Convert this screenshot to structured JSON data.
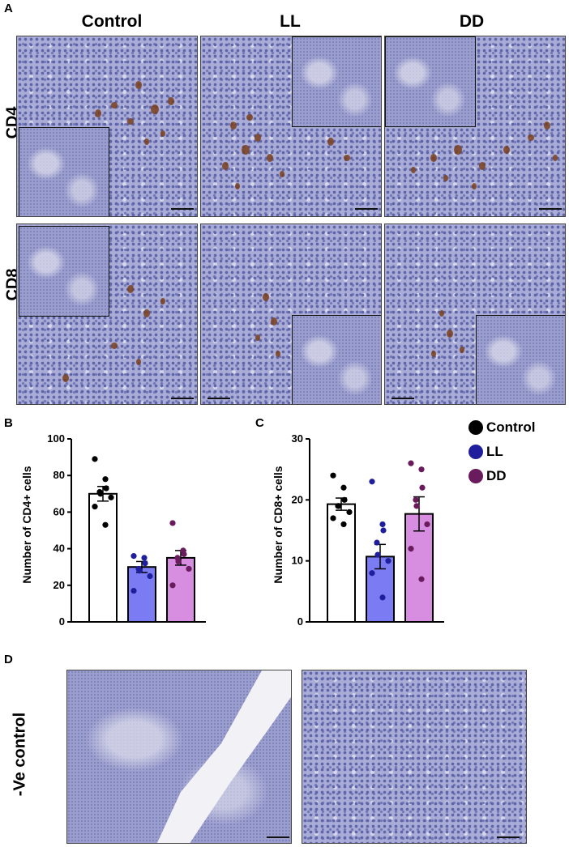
{
  "panels": {
    "A": "A",
    "B": "B",
    "C": "C",
    "D": "D"
  },
  "panel_a": {
    "columns": [
      "Control",
      "LL",
      "DD"
    ],
    "rows": [
      "CD4",
      "CD8"
    ]
  },
  "panel_d": {
    "row_label": "-Ve control"
  },
  "legend": [
    {
      "label": "Control",
      "color": "#000000"
    },
    {
      "label": "LL",
      "color": "#1f1f9e"
    },
    {
      "label": "DD",
      "color": "#6a1b5e"
    }
  ],
  "colors": {
    "control_bar": "#ffffff",
    "ll_bar": "#7b7cf4",
    "dd_bar": "#d88ee0",
    "stain": "#7a3f1c",
    "tissue": "#a9acd6"
  },
  "chart_data": [
    {
      "type": "bar",
      "panel": "B",
      "ylabel": "Number of CD4+ cells",
      "ylim": [
        0,
        100
      ],
      "yticks": [
        0,
        20,
        40,
        60,
        80,
        100
      ],
      "categories": [
        "Control",
        "LL",
        "DD"
      ],
      "values": [
        70,
        30,
        35
      ],
      "errors": [
        4,
        3,
        4
      ],
      "points": [
        [
          89,
          78,
          73,
          71,
          70,
          68,
          63,
          53
        ],
        [
          36,
          35,
          32,
          29,
          28,
          25,
          17
        ],
        [
          54,
          39,
          37,
          35,
          33,
          29,
          20
        ]
      ]
    },
    {
      "type": "bar",
      "panel": "C",
      "ylabel": "Number of CD8+ cells",
      "ylim": [
        0,
        30
      ],
      "yticks": [
        0,
        10,
        20,
        30
      ],
      "categories": [
        "Control",
        "LL",
        "DD"
      ],
      "values": [
        19.3,
        10.7,
        17.7
      ],
      "errors": [
        1,
        2,
        2.8
      ],
      "points": [
        [
          24,
          22,
          20,
          19,
          19,
          18,
          17,
          16
        ],
        [
          23,
          16,
          15,
          13,
          11,
          10,
          8,
          4
        ],
        [
          26,
          25,
          22,
          20,
          19,
          16,
          12,
          7
        ]
      ]
    }
  ]
}
